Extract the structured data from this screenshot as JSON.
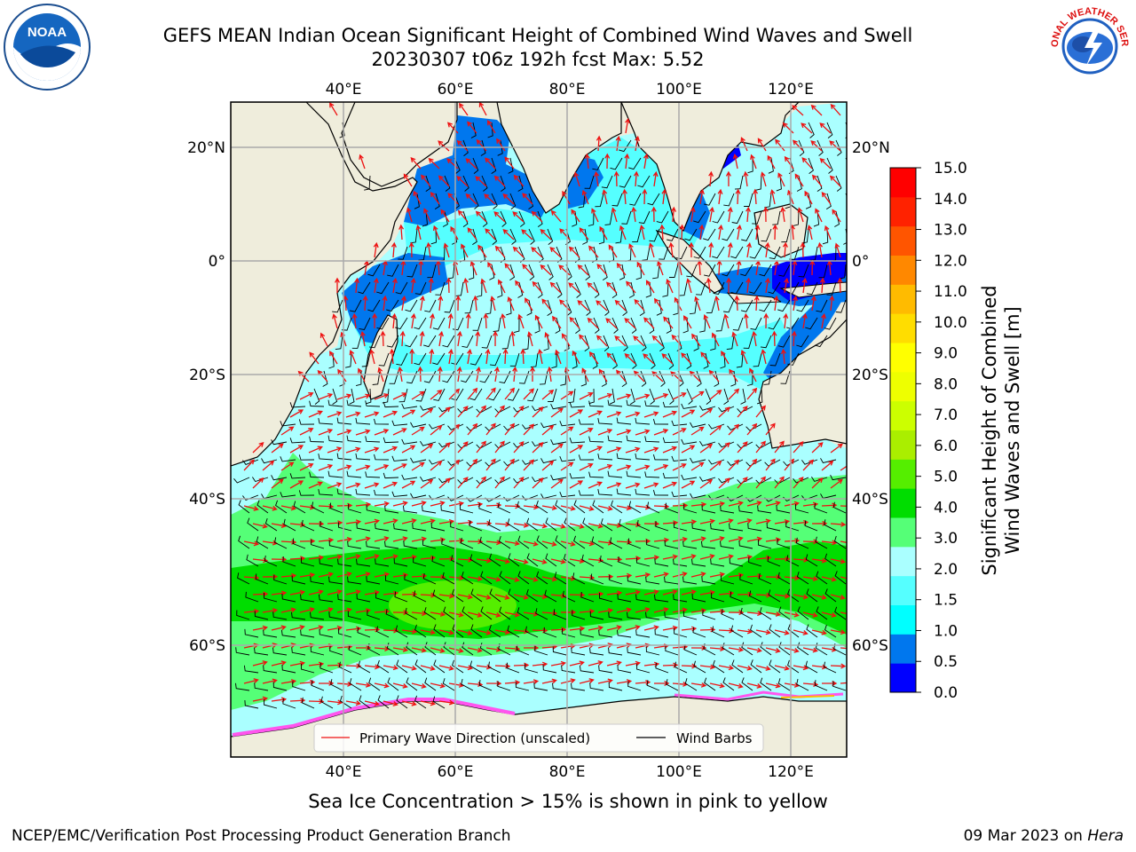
{
  "title": {
    "line1": "GEFS MEAN Indian Ocean Significant Height of Combined Wind Waves and Swell",
    "line2": "20230307 t06z 192h fcst   Max: 5.52"
  },
  "logos": {
    "left": {
      "name": "noaa-logo",
      "text": "NOAA"
    },
    "right": {
      "name": "nws-logo",
      "text": "NATIONAL WEATHER SERVICE"
    }
  },
  "map": {
    "lon_ticks_top": [
      "40°E",
      "60°E",
      "80°E",
      "100°E",
      "120°E"
    ],
    "lon_ticks_bottom": [
      "40°E",
      "60°E",
      "80°E",
      "100°E",
      "120°E"
    ],
    "lat_ticks_left": [
      "20°N",
      "0°",
      "20°S",
      "40°S",
      "60°S"
    ],
    "lat_ticks_right": [
      "20°N",
      "0°",
      "20°S",
      "40°S",
      "60°S"
    ],
    "legend": {
      "wave_direction": "Primary Wave Direction (unscaled)",
      "wind_barbs": "Wind Barbs"
    },
    "colors": {
      "land": "#efeddc",
      "wave_arrow": "#ee1111",
      "barb": "#000000"
    }
  },
  "colorbar": {
    "title_line1": "Significant Height of Combined",
    "title_line2": "Wind Waves and Swell [m]",
    "ticks": [
      "15.0",
      "14.0",
      "13.0",
      "12.0",
      "11.0",
      "10.0",
      "9.0",
      "8.0",
      "7.0",
      "6.0",
      "5.0",
      "4.0",
      "3.0",
      "2.0",
      "1.5",
      "1.0",
      "0.5",
      "0.0"
    ],
    "colors": [
      "#0000ff",
      "#0077ee",
      "#00ffff",
      "#55ffff",
      "#aaffff",
      "#55ff77",
      "#00dd00",
      "#55ee00",
      "#aaee00",
      "#ccff00",
      "#eeff00",
      "#ffff00",
      "#ffdd00",
      "#ffbb00",
      "#ff8800",
      "#ff5500",
      "#ff2200",
      "#ff0000"
    ]
  },
  "footer": {
    "ice_note": "Sea Ice Concentration > 15% is shown in pink to yellow",
    "credit_left": "NCEP/EMC/Verification Post Processing Product Generation Branch",
    "credit_date": "09 Mar 2023 on ",
    "credit_host": "Hera"
  }
}
